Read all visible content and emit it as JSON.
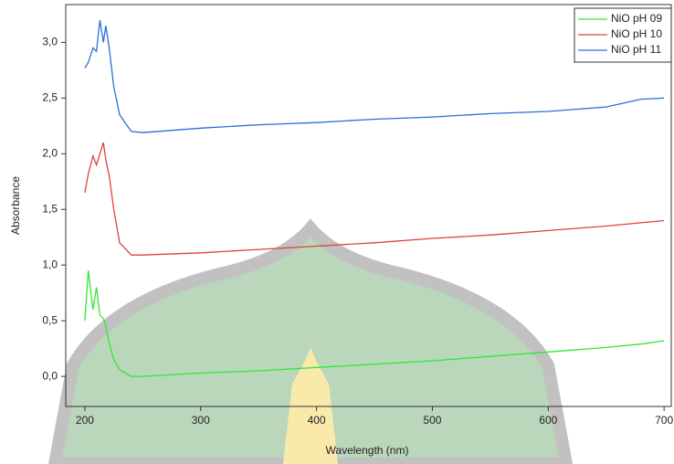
{
  "chart_data": {
    "type": "line",
    "x_label": "Wavelength (nm)",
    "y_label": "Absorbance",
    "x": [
      200,
      203,
      207,
      210,
      213,
      216,
      218,
      221,
      225,
      230,
      240,
      250,
      300,
      350,
      400,
      450,
      500,
      550,
      600,
      650,
      680,
      700
    ],
    "series": [
      {
        "name": "NiO pH 09",
        "color": "#33e633",
        "values": [
          0.5,
          0.95,
          0.6,
          0.8,
          0.55,
          0.52,
          0.45,
          0.3,
          0.15,
          0.06,
          0.0,
          0.0,
          0.03,
          0.05,
          0.08,
          0.11,
          0.14,
          0.18,
          0.22,
          0.26,
          0.29,
          0.32
        ]
      },
      {
        "name": "NiO pH 10",
        "color": "#e04040",
        "values": [
          1.65,
          1.82,
          1.98,
          1.9,
          2.0,
          2.1,
          1.95,
          1.8,
          1.5,
          1.2,
          1.09,
          1.09,
          1.11,
          1.14,
          1.17,
          1.2,
          1.24,
          1.27,
          1.31,
          1.35,
          1.38,
          1.4
        ]
      },
      {
        "name": "NiO pH 11",
        "color": "#2a6fd6",
        "values": [
          2.77,
          2.82,
          2.95,
          2.92,
          3.2,
          3.0,
          3.15,
          2.95,
          2.6,
          2.35,
          2.2,
          2.19,
          2.23,
          2.26,
          2.28,
          2.31,
          2.33,
          2.36,
          2.38,
          2.42,
          2.49,
          2.5
        ]
      }
    ],
    "xlim": [
      183.5,
      707
    ],
    "ylim": [
      -0.27,
      3.34
    ],
    "xticks": [
      200,
      300,
      400,
      500,
      600,
      700
    ],
    "yticks": [
      {
        "value": 0,
        "label": "0,0"
      },
      {
        "value": 0.5,
        "label": "0,5"
      },
      {
        "value": 1,
        "label": "1,0"
      },
      {
        "value": 1.5,
        "label": "1,5"
      },
      {
        "value": 2,
        "label": "2,0"
      },
      {
        "value": 2.5,
        "label": "2,5"
      },
      {
        "value": 3,
        "label": "3,0"
      }
    ],
    "legend": "upper right"
  }
}
